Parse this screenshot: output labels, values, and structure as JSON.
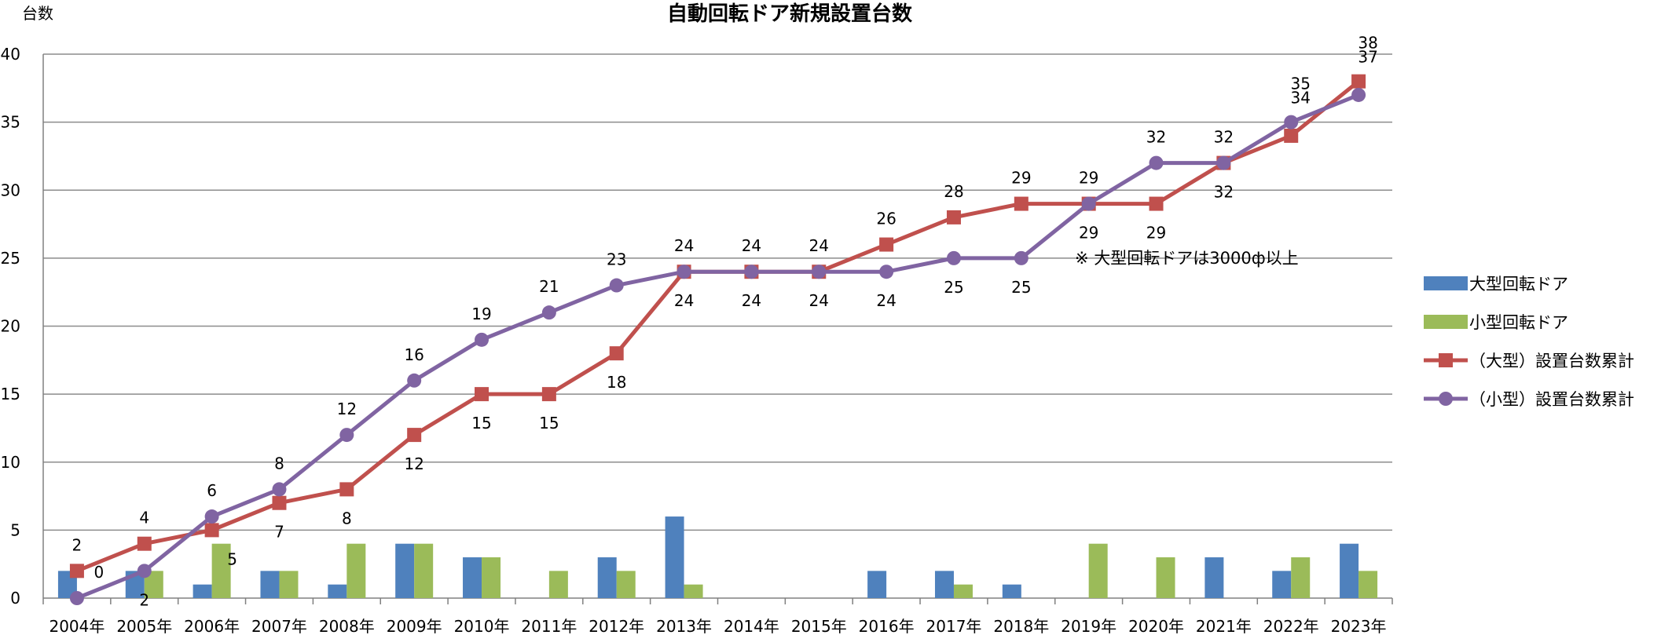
{
  "chart_data": {
    "type": "bar+line",
    "title": "自動回転ドア新規設置台数",
    "ylabel": "台数",
    "ylim": [
      0,
      40
    ],
    "yticks": [
      "0",
      "5",
      "10",
      "15",
      "20",
      "25",
      "30",
      "35",
      "40"
    ],
    "categories": [
      "2004年",
      "2005年",
      "2006年",
      "2007年",
      "2008年",
      "2009年",
      "2010年",
      "2011年",
      "2012年",
      "2013年",
      "2014年",
      "2015年",
      "2016年",
      "2017年",
      "2018年",
      "2019年",
      "2020年",
      "2021年",
      "2022年",
      "2023年"
    ],
    "bar_series": [
      {
        "name": "大型回転ドア",
        "color": "#4F81BD",
        "values": [
          2,
          2,
          1,
          2,
          1,
          4,
          3,
          0,
          3,
          6,
          0,
          0,
          2,
          2,
          1,
          0,
          0,
          3,
          2,
          4
        ]
      },
      {
        "name": "小型回転ドア",
        "color": "#9BBB59",
        "values": [
          0,
          2,
          4,
          2,
          4,
          4,
          3,
          2,
          2,
          1,
          0,
          0,
          0,
          1,
          0,
          4,
          3,
          0,
          3,
          2
        ]
      }
    ],
    "line_series": [
      {
        "name": "（大型）設置台数累計",
        "color": "#C0504D",
        "marker": "square",
        "values": [
          2,
          4,
          5,
          7,
          8,
          12,
          15,
          15,
          18,
          24,
          24,
          24,
          26,
          28,
          29,
          29,
          29,
          32,
          34,
          38
        ],
        "labels": [
          "2",
          "4",
          "5",
          "7",
          "8",
          "12",
          "15",
          "15",
          "18",
          "24",
          "24",
          "24",
          "26",
          "28",
          "29",
          "29",
          "29",
          "32",
          "34",
          "38"
        ]
      },
      {
        "name": "（小型）設置台数累計",
        "color": "#8064A2",
        "marker": "circle",
        "values": [
          0,
          2,
          6,
          8,
          12,
          16,
          19,
          21,
          23,
          24,
          24,
          24,
          24,
          25,
          25,
          29,
          32,
          32,
          35,
          37
        ],
        "labels": [
          "0",
          "2",
          "6",
          "8",
          "12",
          "16",
          "19",
          "21",
          "23",
          "24",
          "24",
          "24",
          "24",
          "25",
          "25",
          "29",
          "32",
          "32",
          "35",
          "37"
        ]
      }
    ],
    "annotation": "※ 大型回転ドアは3000ф以上",
    "grid": true,
    "legend_position": "right"
  }
}
